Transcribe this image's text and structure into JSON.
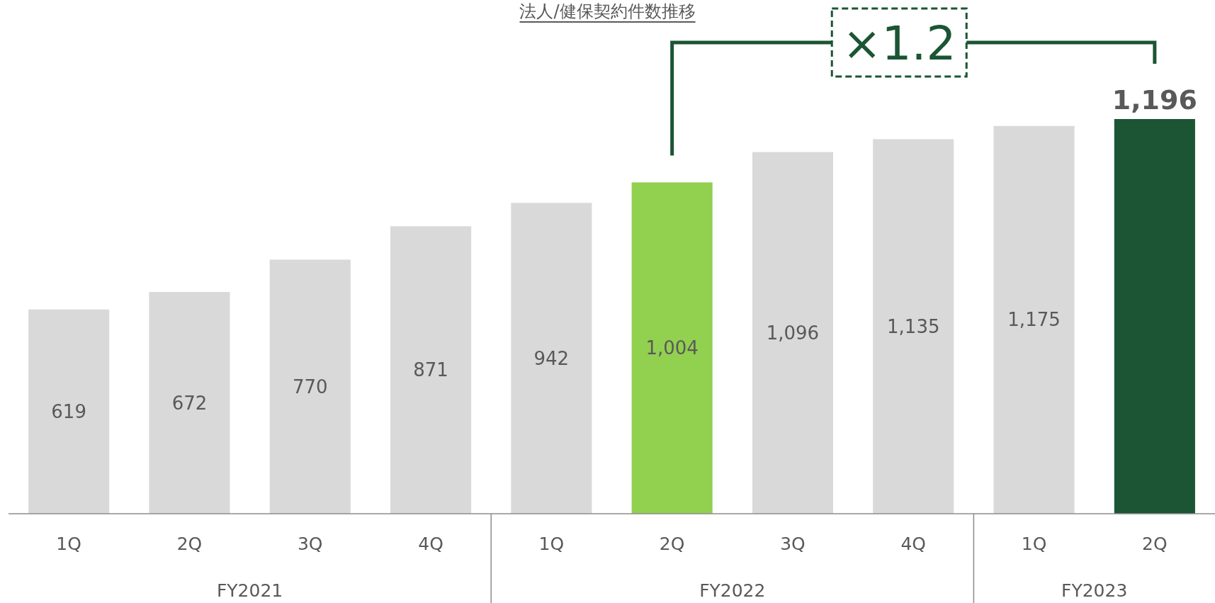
{
  "chart_data": {
    "type": "bar",
    "title": "法人/健保契約件数推移",
    "categories": [
      "1Q",
      "2Q",
      "3Q",
      "4Q",
      "1Q",
      "2Q",
      "3Q",
      "4Q",
      "1Q",
      "2Q"
    ],
    "values": [
      619,
      672,
      770,
      871,
      942,
      1004,
      1096,
      1135,
      1175,
      1196
    ],
    "colors": [
      "#d9d9d9",
      "#d9d9d9",
      "#d9d9d9",
      "#d9d9d9",
      "#d9d9d9",
      "#92d050",
      "#d9d9d9",
      "#d9d9d9",
      "#d9d9d9",
      "#1b5533"
    ],
    "value_labels": [
      "619",
      "672",
      "770",
      "871",
      "942",
      "1,004",
      "1,096",
      "1,135",
      "1,175",
      "1,196"
    ],
    "annotations": [
      "×1.2",
      "FY2021",
      "FY2022",
      "FY2023"
    ]
  }
}
